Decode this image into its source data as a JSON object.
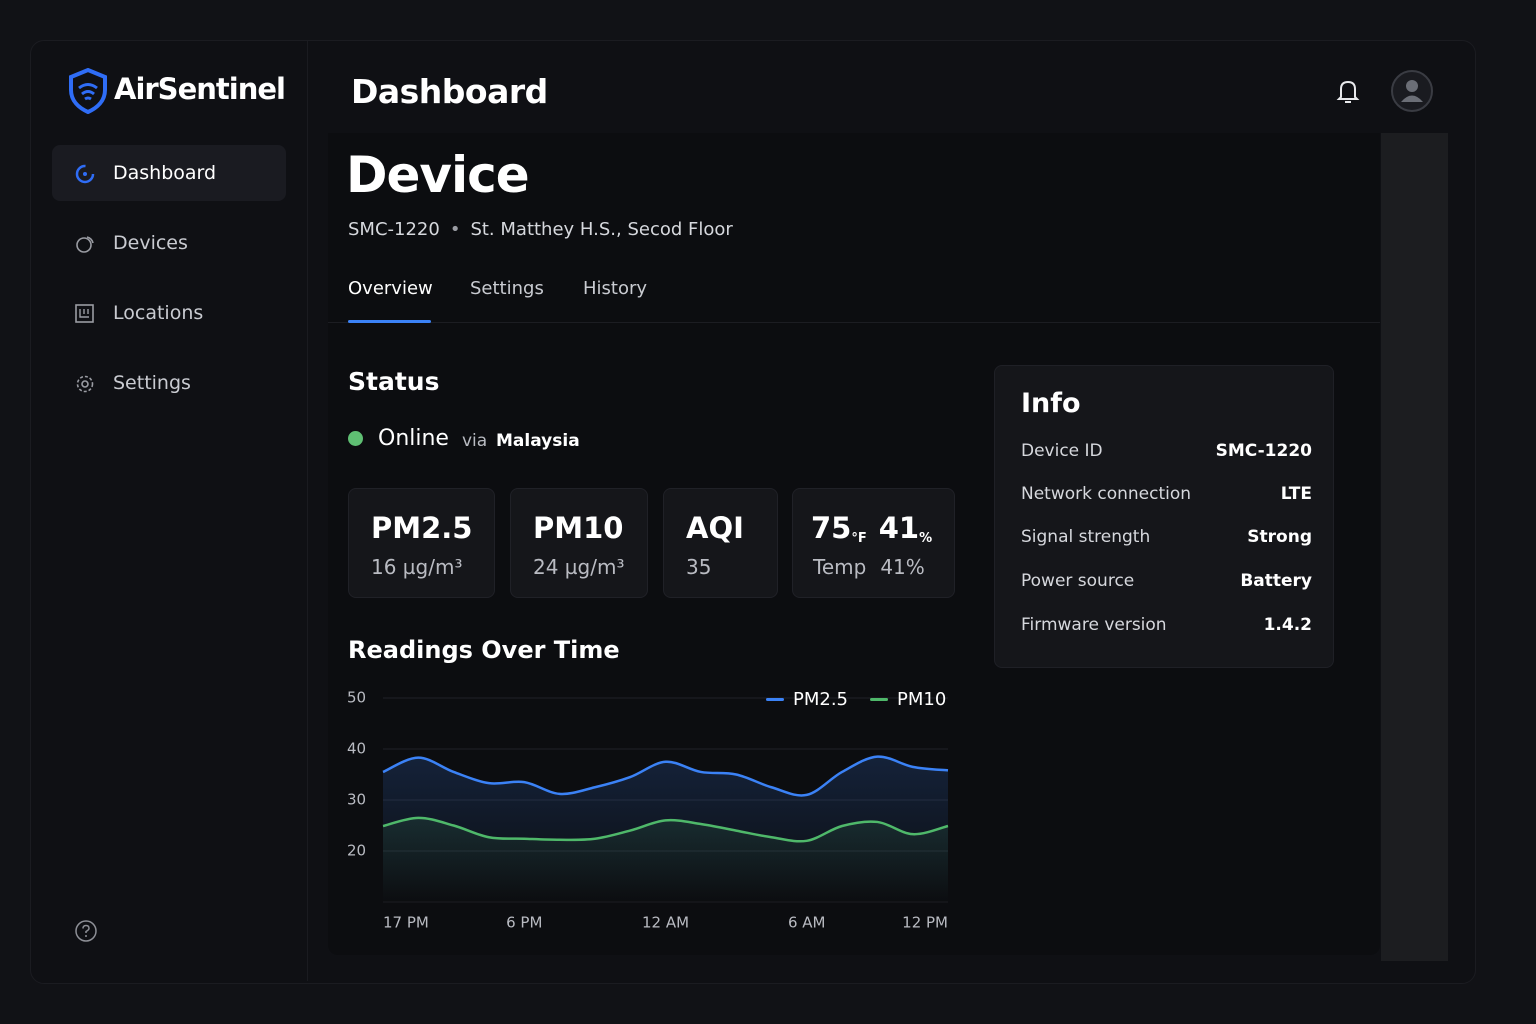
{
  "sidebar": {
    "brand": "AirSentinel",
    "nav": [
      "Dashboard",
      "Devices",
      "Locations",
      "Settings"
    ]
  },
  "header": {
    "title": "Dashboard"
  },
  "device": {
    "title": "Device",
    "id": "SMC-1220",
    "location": "St. Matthey H.S., Secod Floor"
  },
  "tabs": [
    "Overview",
    "Settings",
    "History"
  ],
  "status": {
    "heading": "Status",
    "state": "Online",
    "via": "via",
    "network": "Malaysia"
  },
  "metrics": [
    {
      "label": "PM2.5",
      "value": "16 µg/m³"
    },
    {
      "label": "PM10",
      "value": "24 µg/m³"
    },
    {
      "label": "AQI",
      "value": "35"
    },
    {
      "label": "75",
      "unit": "°F",
      "label2": "41",
      "unit2": "%",
      "value": "Temp",
      "value2": "41%"
    }
  ],
  "info": {
    "title": "Info",
    "rows": [
      {
        "label": "Device ID",
        "value": "SMC-1220"
      },
      {
        "label": "Network connection",
        "value": "LTE"
      },
      {
        "label": "Signal strength",
        "value": "Strong"
      },
      {
        "label": "Power source",
        "value": "Battery"
      },
      {
        "label": "Firmware version",
        "value": "1.4.2"
      }
    ]
  },
  "chart_data": {
    "type": "line",
    "title": "Readings Over Time",
    "categories": [
      "17 PM",
      null,
      null,
      null,
      "6 PM",
      null,
      null,
      null,
      "12 AM",
      null,
      null,
      null,
      "6 AM",
      null,
      null,
      null,
      "12 PM"
    ],
    "series": [
      {
        "name": "PM2.5",
        "color": "#3b82f6",
        "values": [
          35.5,
          38.3,
          35.5,
          33.3,
          33.5,
          31.2,
          32.5,
          34.5,
          37.5,
          35.5,
          35,
          32.5,
          31,
          35.5,
          38.5,
          36.5,
          35.8
        ]
      },
      {
        "name": "PM10",
        "color": "#4fb86a",
        "values": [
          24.9,
          26.5,
          25,
          22.7,
          22.4,
          22.2,
          22.4,
          24,
          26,
          25.3,
          24,
          22.7,
          22,
          24.9,
          25.7,
          23.3,
          24.9
        ]
      }
    ],
    "ylim": [
      10,
      50
    ],
    "yticks": [
      20,
      30,
      40,
      50
    ],
    "grid": true
  }
}
